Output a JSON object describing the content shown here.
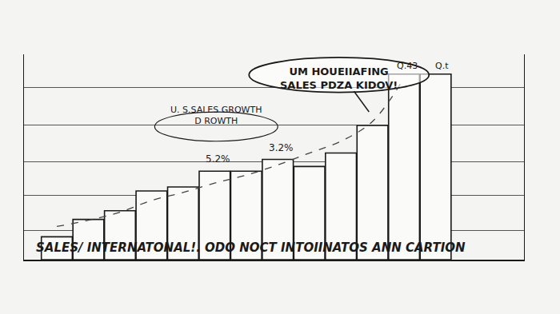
{
  "chart_data": {
    "type": "bar",
    "categories": [
      null,
      null,
      null,
      null,
      null,
      null,
      null,
      null,
      null,
      null,
      null,
      null,
      null
    ],
    "series": [
      {
        "type": "bar",
        "color": "#fafaf8",
        "values": [
          29,
          51,
          62,
          87,
          92,
          112,
          112,
          127,
          118,
          135,
          170,
          235,
          235
        ]
      },
      {
        "type": "line",
        "color": "#444444",
        "line_style": "dashed",
        "values": [
          42,
          50,
          60,
          75,
          85,
          97,
          107,
          120,
          135,
          150,
          175,
          230,
          null
        ]
      }
    ],
    "ylim": [
      0,
      260
    ],
    "yticks": [
      37,
      81,
      124,
      170,
      218
    ],
    "grid": true,
    "tick_labels": false,
    "callout": [
      "UM HOUEIIAFING",
      "SALES PDZA KIDOV!"
    ],
    "annotations": [
      {
        "text": [
          "U. S.SALES GROWTH",
          "D ROWTH"
        ]
      },
      {
        "text": [
          "5.2%"
        ]
      },
      {
        "text": [
          "3.2%"
        ]
      },
      {
        "text": [
          "Q.43"
        ]
      },
      {
        "text": [
          "Q.t"
        ]
      }
    ],
    "caption": "SALES/ INTERNATONAL!. ODO NOCT INTOIINATOS ANN CARTION"
  }
}
